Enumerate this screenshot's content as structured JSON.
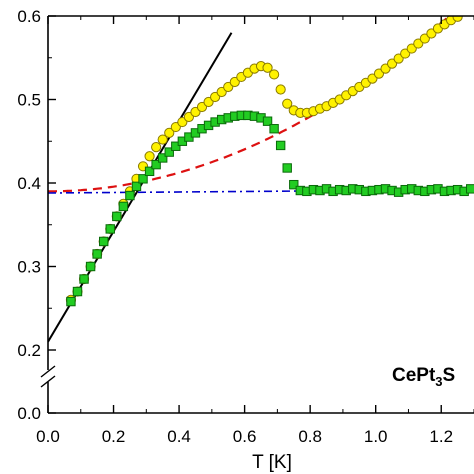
{
  "chart_data": {
    "type": "scatter",
    "xlabel": "T [K]",
    "ylabel": "",
    "xlim": [
      0.0,
      1.3
    ],
    "xticks": [
      "0.0",
      "0.2",
      "0.4",
      "0.6",
      "0.8",
      "1.0",
      "1.2",
      "1"
    ],
    "ylim_upper": [
      0.2,
      0.6
    ],
    "ylim_lower": [
      0.0,
      0.0
    ],
    "yticks": [
      "0.0",
      "0.2",
      "0.3",
      "0.4",
      "0.5",
      "0.6"
    ],
    "axis_break": true,
    "grid": false,
    "annotation": {
      "main": "CePt",
      "sub": "3",
      "rest": "S"
    },
    "colors": {
      "yellow_fill": "#FFF200",
      "yellow_edge": "#8a7a00",
      "green_fill": "#22CC22",
      "green_edge": "#0a6a0a",
      "red_dashed": "#DD1111",
      "blue_dashdot": "#0000CC",
      "black_line": "#000000"
    },
    "series": [
      {
        "marker": "circle",
        "color": "#FFF200",
        "x": [
          0.07,
          0.09,
          0.11,
          0.13,
          0.15,
          0.17,
          0.19,
          0.21,
          0.23,
          0.25,
          0.27,
          0.29,
          0.31,
          0.33,
          0.35,
          0.37,
          0.39,
          0.41,
          0.43,
          0.45,
          0.47,
          0.49,
          0.51,
          0.53,
          0.55,
          0.57,
          0.59,
          0.61,
          0.63,
          0.65,
          0.67,
          0.69,
          0.71,
          0.73,
          0.75,
          0.77,
          0.79,
          0.81,
          0.83,
          0.85,
          0.87,
          0.89,
          0.91,
          0.93,
          0.95,
          0.97,
          0.99,
          1.01,
          1.03,
          1.05,
          1.07,
          1.09,
          1.11,
          1.13,
          1.15,
          1.17,
          1.19,
          1.21,
          1.23,
          1.25
        ],
        "y": [
          0.26,
          0.27,
          0.285,
          0.3,
          0.315,
          0.33,
          0.345,
          0.36,
          0.375,
          0.39,
          0.405,
          0.42,
          0.432,
          0.443,
          0.452,
          0.46,
          0.467,
          0.473,
          0.479,
          0.485,
          0.491,
          0.497,
          0.503,
          0.509,
          0.515,
          0.521,
          0.527,
          0.532,
          0.537,
          0.54,
          0.538,
          0.53,
          0.512,
          0.495,
          0.487,
          0.484,
          0.484,
          0.486,
          0.489,
          0.492,
          0.496,
          0.5,
          0.505,
          0.51,
          0.515,
          0.52,
          0.525,
          0.531,
          0.537,
          0.543,
          0.549,
          0.555,
          0.561,
          0.567,
          0.573,
          0.579,
          0.585,
          0.59,
          0.595,
          0.599
        ]
      },
      {
        "marker": "square",
        "color": "#22CC22",
        "x": [
          0.07,
          0.09,
          0.11,
          0.13,
          0.15,
          0.17,
          0.19,
          0.21,
          0.23,
          0.25,
          0.27,
          0.29,
          0.31,
          0.33,
          0.35,
          0.37,
          0.39,
          0.41,
          0.43,
          0.45,
          0.47,
          0.49,
          0.51,
          0.53,
          0.55,
          0.57,
          0.59,
          0.61,
          0.63,
          0.65,
          0.67,
          0.69,
          0.71,
          0.73,
          0.75,
          0.77,
          0.79,
          0.81,
          0.83,
          0.85,
          0.87,
          0.89,
          0.91,
          0.93,
          0.95,
          0.97,
          0.99,
          1.01,
          1.03,
          1.05,
          1.07,
          1.09,
          1.11,
          1.13,
          1.15,
          1.17,
          1.19,
          1.21,
          1.23,
          1.25,
          1.27,
          1.29
        ],
        "y": [
          0.258,
          0.27,
          0.285,
          0.3,
          0.315,
          0.33,
          0.345,
          0.36,
          0.372,
          0.385,
          0.396,
          0.405,
          0.414,
          0.422,
          0.43,
          0.437,
          0.444,
          0.45,
          0.455,
          0.46,
          0.465,
          0.469,
          0.473,
          0.476,
          0.478,
          0.48,
          0.481,
          0.481,
          0.48,
          0.478,
          0.474,
          0.465,
          0.445,
          0.418,
          0.398,
          0.391,
          0.39,
          0.392,
          0.391,
          0.393,
          0.39,
          0.392,
          0.391,
          0.393,
          0.392,
          0.39,
          0.391,
          0.392,
          0.393,
          0.391,
          0.389,
          0.392,
          0.393,
          0.391,
          0.39,
          0.392,
          0.393,
          0.39,
          0.391,
          0.392,
          0.39,
          0.393
        ]
      }
    ],
    "fits": [
      {
        "style": "solid",
        "color": "#000000",
        "x": [
          0.0,
          0.56
        ],
        "y": [
          0.21,
          0.58
        ]
      },
      {
        "style": "dashed",
        "color": "#DD1111",
        "formula": "0.39 + 0.14*T^2",
        "x_range": [
          0.0,
          1.3
        ]
      },
      {
        "style": "dashdot",
        "color": "#0000CC",
        "x": [
          0.0,
          1.3
        ],
        "y": [
          0.388,
          0.392
        ]
      }
    ]
  }
}
